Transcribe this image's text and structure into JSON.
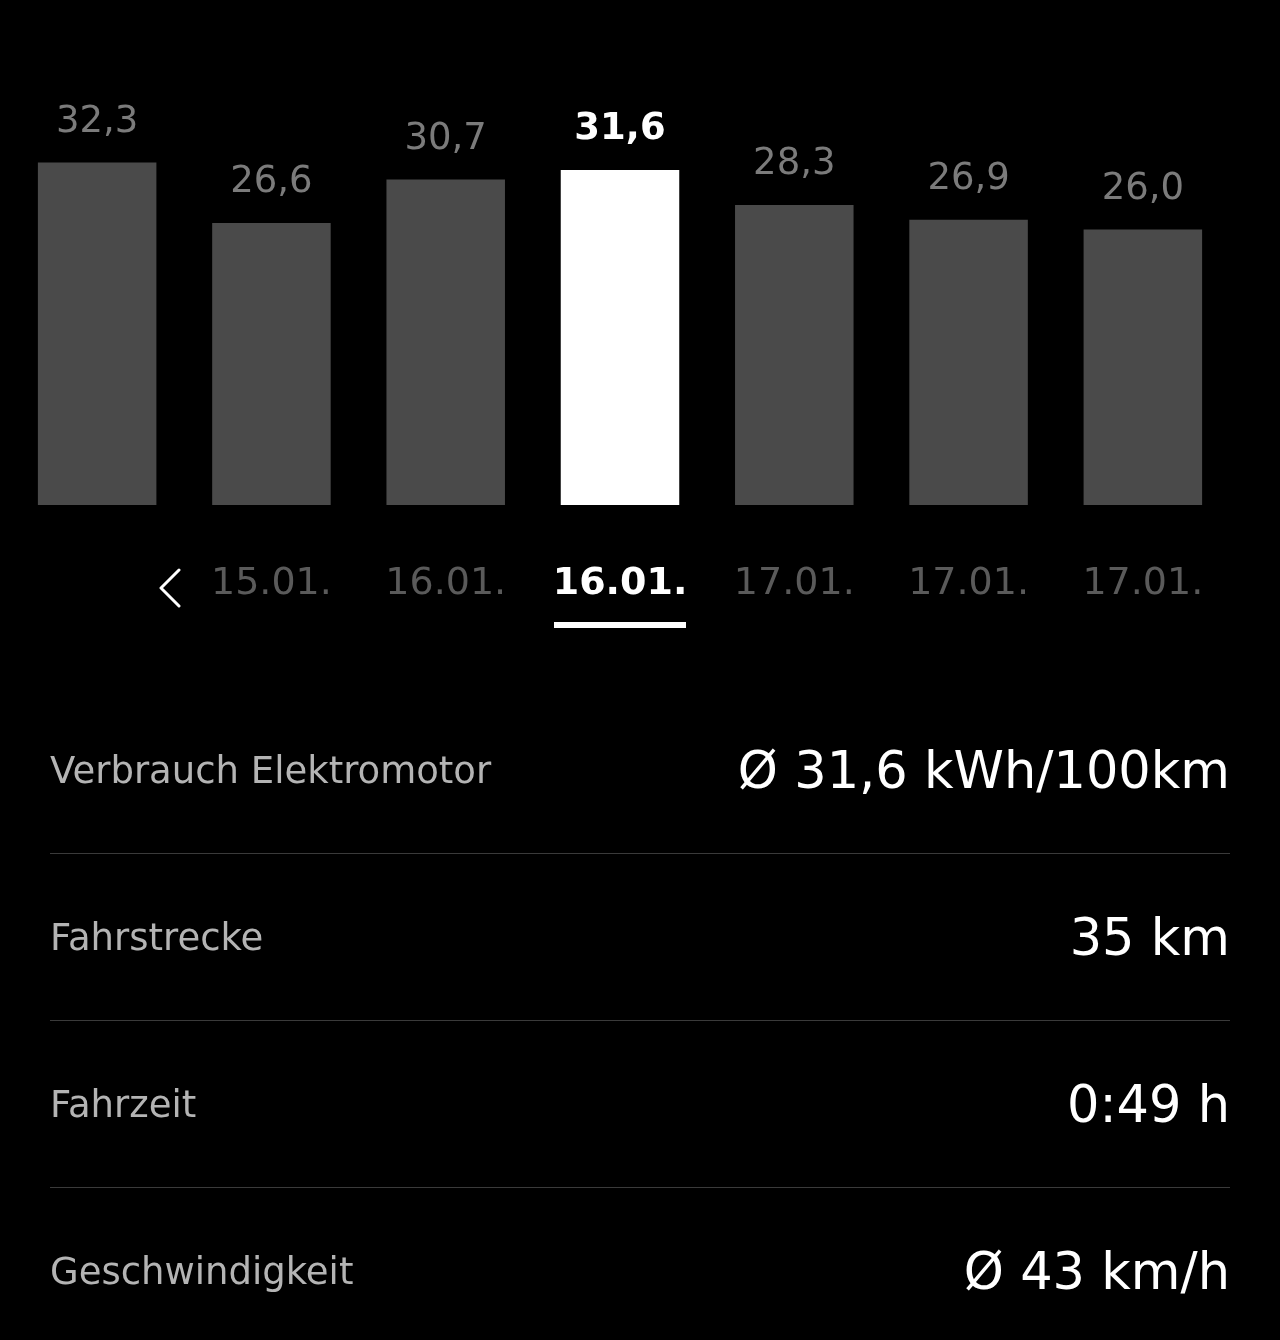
{
  "chart_data": {
    "type": "bar",
    "categories": [
      null,
      "15.01.",
      "16.01.",
      "16.01.",
      "17.01.",
      "17.01.",
      "17.01."
    ],
    "values": [
      32.3,
      26.6,
      30.7,
      31.6,
      28.3,
      26.9,
      26.0
    ],
    "colors": [
      "#4a4a4a",
      "#4a4a4a",
      "#4a4a4a",
      "#ffffff",
      "#4a4a4a",
      "#4a4a4a",
      "#4a4a4a"
    ],
    "value_labels": [
      "32,3",
      "26,6",
      "30,7",
      "31,6",
      "28,3",
      "26,9",
      "26,0"
    ],
    "annotations": [
      "Verbrauch Elektromotor",
      "Ø 31,6 kWh/100km",
      "Fahrstrecke",
      "35 km",
      "Fahrzeit",
      "0:49 h",
      "Geschwindigkeit",
      "Ø 43 km/h"
    ]
  }
}
